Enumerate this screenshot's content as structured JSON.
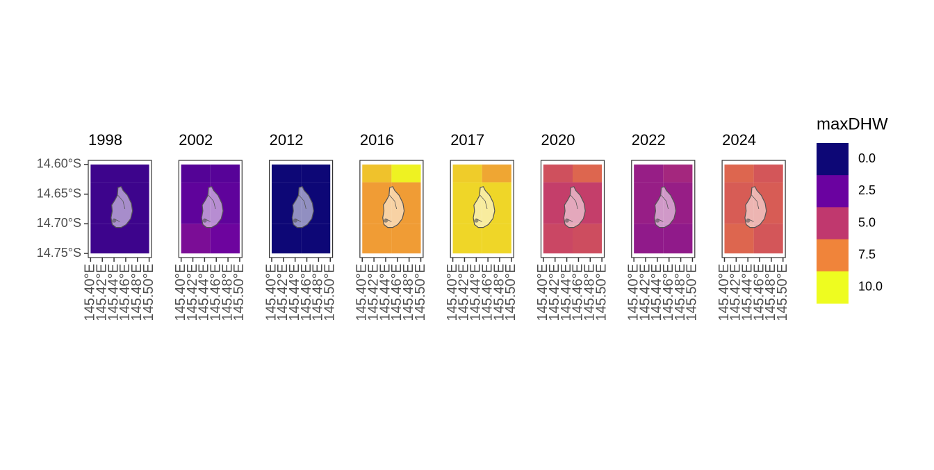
{
  "chart_data": {
    "type": "raster-map",
    "xlim": [
      145.396,
      145.504
    ],
    "ylim": [
      -14.757,
      -14.593
    ],
    "xticks": [
      {
        "value": 145.4,
        "label": "145.40°E"
      },
      {
        "value": 145.42,
        "label": "145.42°E"
      },
      {
        "value": 145.44,
        "label": "145.44°E"
      },
      {
        "value": 145.46,
        "label": "145.46°E"
      },
      {
        "value": 145.48,
        "label": "145.48°E"
      },
      {
        "value": 145.5,
        "label": "145.50°E"
      }
    ],
    "yticks": [
      {
        "value": -14.6,
        "label": "14.60°S"
      },
      {
        "value": -14.65,
        "label": "14.65°S"
      },
      {
        "value": -14.7,
        "label": "14.70°S"
      },
      {
        "value": -14.75,
        "label": "14.75°S"
      }
    ],
    "lon_edges": [
      145.4,
      145.45,
      145.5
    ],
    "lat_edges": [
      -14.6,
      -14.63,
      -14.7,
      -14.75
    ],
    "panels": [
      {
        "title": "1998",
        "values": [
          [
            1.3,
            1.3
          ],
          [
            1.3,
            1.3
          ],
          [
            1.3,
            1.3
          ]
        ]
      },
      {
        "title": "2002",
        "values": [
          [
            1.9,
            2.0
          ],
          [
            2.2,
            2.2
          ],
          [
            3.0,
            2.6
          ]
        ]
      },
      {
        "title": "2012",
        "values": [
          [
            0.0,
            0.0
          ],
          [
            0.0,
            0.0
          ],
          [
            0.0,
            0.0
          ]
        ]
      },
      {
        "title": "2016",
        "values": [
          [
            8.8,
            9.8
          ],
          [
            8.0,
            8.0
          ],
          [
            8.0,
            8.0
          ]
        ]
      },
      {
        "title": "2017",
        "values": [
          [
            9.0,
            8.2
          ],
          [
            9.2,
            9.2
          ],
          [
            9.2,
            9.2
          ]
        ]
      },
      {
        "title": "2020",
        "values": [
          [
            5.8,
            6.5
          ],
          [
            5.2,
            5.2
          ],
          [
            5.5,
            5.7
          ]
        ]
      },
      {
        "title": "2022",
        "values": [
          [
            3.8,
            4.2
          ],
          [
            3.8,
            3.8
          ],
          [
            3.6,
            3.6
          ]
        ]
      },
      {
        "title": "2024",
        "values": [
          [
            6.5,
            6.0
          ],
          [
            6.2,
            6.2
          ],
          [
            6.5,
            6.0
          ]
        ]
      }
    ],
    "legend": {
      "title": "maxDHW",
      "breaks": [
        {
          "value": 0,
          "label": "0.0"
        },
        {
          "value": 2.5,
          "label": "2.5"
        },
        {
          "value": 5,
          "label": "5.0"
        },
        {
          "value": 7.5,
          "label": "7.5"
        },
        {
          "value": 10,
          "label": "10.0"
        }
      ],
      "colors": [
        "#0d0776",
        "#6a02a0",
        "#c0386e",
        "#f0843a",
        "#eefc20"
      ]
    }
  }
}
